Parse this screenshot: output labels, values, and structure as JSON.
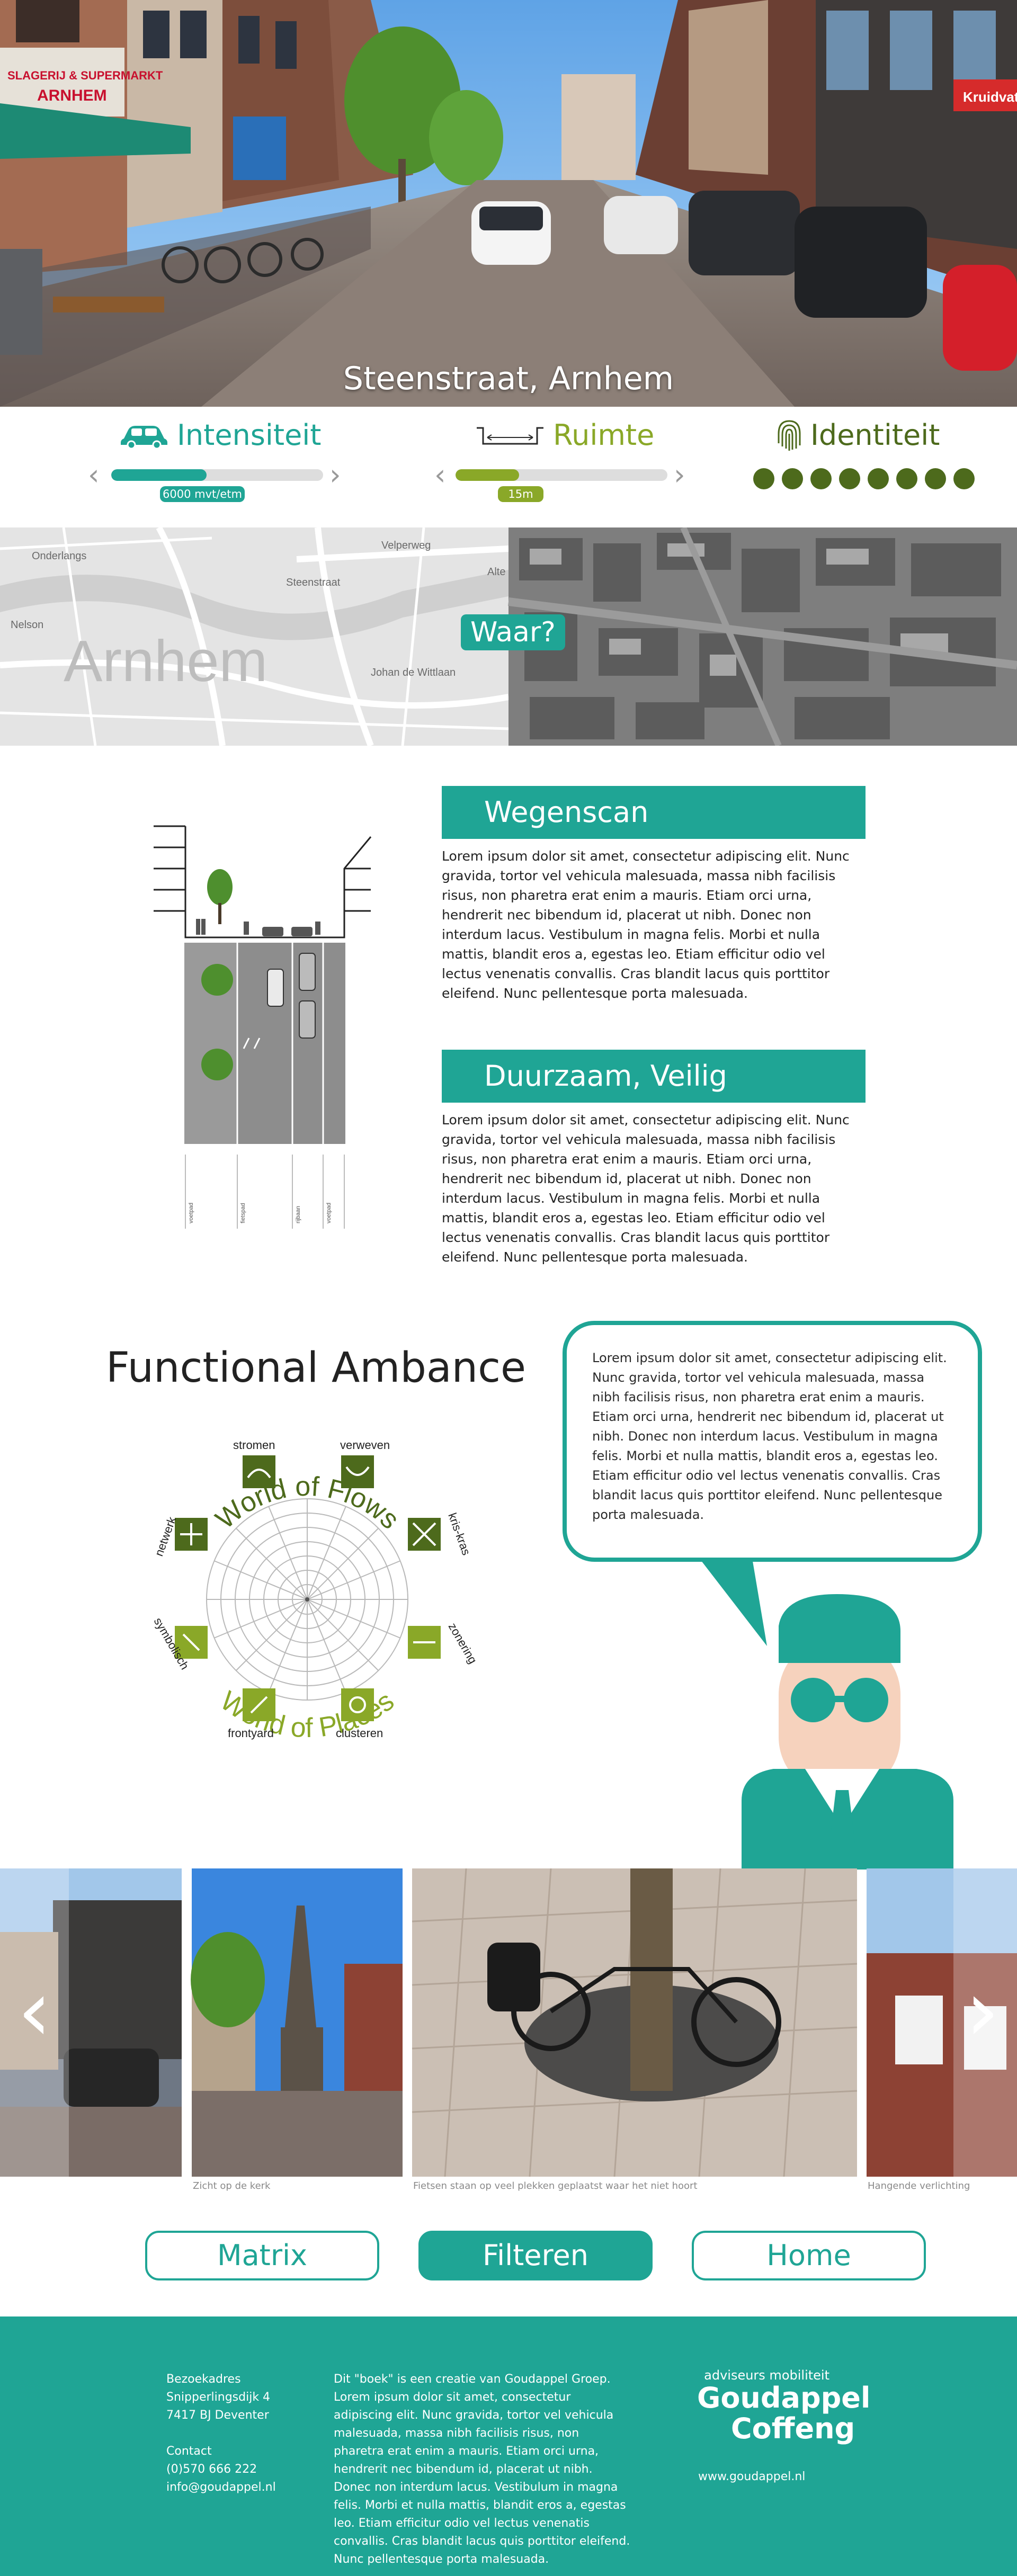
{
  "hero": {
    "caption": "Steenstraat, Arnhem",
    "shop_signs": [
      "SLAGERIJ & SUPERMARKT",
      "ARNHEM",
      "Kruidvat"
    ]
  },
  "indicators": {
    "intensiteit": {
      "label": "Intensiteit",
      "badge": "6000 mvt/etm",
      "level": 0.45
    },
    "ruimte": {
      "label": "Ruimte",
      "badge": "15m",
      "level": 0.3
    },
    "identiteit": {
      "label": "Identiteit",
      "dots": 8
    }
  },
  "map": {
    "place_label": "Arnhem",
    "streets": [
      "Onderlangs",
      "Steenstraat",
      "Johan de Wittlaan",
      "Nelson",
      "Velperweg",
      "Alte"
    ],
    "badge": "Waar?"
  },
  "wegenscan": {
    "title": "Wegenscan",
    "body": "Lorem ipsum dolor sit amet, consectetur adipiscing elit. Nunc gravida, tortor vel vehicula malesuada, massa nibh facilisis risus, non pharetra erat enim a mauris. Etiam orci urna, hendrerit nec bibendum id, placerat ut nibh. Donec non interdum lacus. Vestibulum in magna felis. Morbi et nulla mattis, blandit eros a, egestas leo. Etiam efficitur odio vel lectus venenatis convallis. Cras blandit lacus quis porttitor eleifend. Nunc pellentesque porta malesuada.",
    "profile_labels": [
      "voetpad",
      "fietspad",
      "rijbaan",
      "voetpad"
    ]
  },
  "duurzaam": {
    "title": "Duurzaam, Veilig",
    "body": "Lorem ipsum dolor sit amet, consectetur adipiscing elit. Nunc gravida, tortor vel vehicula malesuada, massa nibh facilisis risus, non pharetra erat enim a mauris. Etiam orci urna, hendrerit nec bibendum id, placerat ut nibh. Donec non interdum lacus. Vestibulum in magna felis. Morbi et nulla mattis, blandit eros a, egestas leo. Etiam efficitur odio vel lectus venenatis convallis. Cras blandit lacus quis porttitor eleifend. Nunc pellentesque porta malesuada."
  },
  "ambiance": {
    "title": "Functional Ambance",
    "arc_top": "World of Flows",
    "arc_bottom": "World of Places",
    "spokes": [
      "stromen",
      "verweven",
      "kris-kras",
      "zonering",
      "clusteren",
      "frontyard",
      "symbolisch",
      "netwerk"
    ],
    "speech": "Lorem ipsum dolor sit amet, consectetur adipiscing elit. Nunc gravida, tortor vel vehicula malesuada, massa nibh facilisis risus, non pharetra erat enim a mauris. Etiam orci urna, hendrerit nec bibendum id, placerat ut nibh. Donec non interdum lacus. Vestibulum in magna felis. Morbi et nulla mattis, blandit eros a, egestas leo. Etiam efficitur odio vel lectus venenatis convallis. Cras blandit lacus quis porttitor eleifend. Nunc pellentesque porta malesuada."
  },
  "gallery": {
    "captions": [
      "Zicht op de kerk",
      "Fietsen staan op veel plekken geplaatst waar het niet hoort",
      "Hangende verlichting"
    ],
    "prev_glyph": "‹",
    "next_glyph": "›"
  },
  "buttons": {
    "matrix": "Matrix",
    "filteren": "Filteren",
    "home": "Home"
  },
  "footer": {
    "address": [
      "Bezoekadres",
      "Snipperlingsdijk 4",
      "7417 BJ Deventer",
      "",
      "Contact",
      "(0)570 666 222",
      "info@goudappel.nl"
    ],
    "about": "Dit \"boek\" is een creatie van Goudappel Groep. Lorem ipsum dolor sit amet, consectetur adipiscing elit. Nunc gravida, tortor vel vehicula malesuada, massa nibh facilisis risus, non pharetra erat enim a mauris. Etiam orci urna, hendrerit nec bibendum id, placerat ut nibh. Donec non interdum lacus. Vestibulum in magna felis. Morbi et nulla mattis, blandit eros a, egestas leo. Etiam efficitur odio vel lectus venenatis convallis. Cras blandit lacus quis porttitor eleifend. Nunc pellentesque porta malesuada.",
    "logo_tag": "adviseurs mobiliteit",
    "logo_line1": "Goudappel",
    "logo_line2": "Coffeng",
    "website": "www.goudappel.nl"
  },
  "colors": {
    "teal": "#1fa595",
    "green": "#8aa828",
    "dark_green": "#4d6a1c",
    "gray_track": "#dddddd"
  }
}
